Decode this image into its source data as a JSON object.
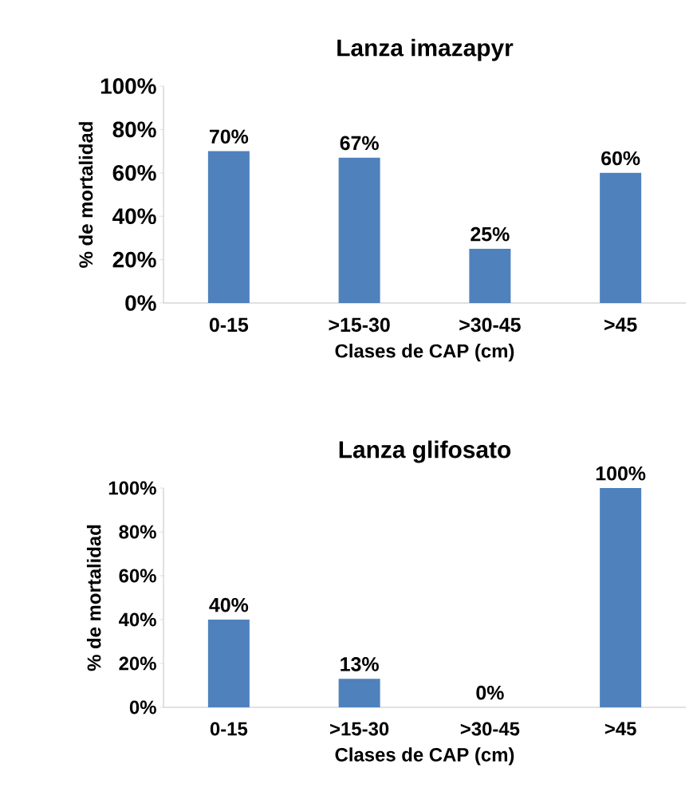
{
  "chart_data": [
    {
      "type": "bar",
      "title": "Lanza imazapyr",
      "xlabel": "Clases de CAP (cm)",
      "ylabel": "% de mortalidad",
      "categories": [
        "0-15",
        ">15-30",
        ">30-45",
        ">45"
      ],
      "values": [
        70,
        67,
        25,
        60
      ],
      "value_labels": [
        "70%",
        "67%",
        "25%",
        "60%"
      ],
      "color": "#4f81bd",
      "ylim": [
        0,
        100
      ],
      "yticks": [
        {
          "value": 0,
          "label": "0%"
        },
        {
          "value": 20,
          "label": "20%"
        },
        {
          "value": 40,
          "label": "40%"
        },
        {
          "value": 60,
          "label": "60%"
        },
        {
          "value": 80,
          "label": "80%"
        },
        {
          "value": 100,
          "label": "100%"
        }
      ]
    },
    {
      "type": "bar",
      "title": "Lanza glifosato",
      "xlabel": "Clases de CAP (cm)",
      "ylabel": "% de mortalidad",
      "categories": [
        "0-15",
        ">15-30",
        ">30-45",
        ">45"
      ],
      "values": [
        40,
        13,
        0,
        100
      ],
      "value_labels": [
        "40%",
        "13%",
        "0%",
        "100%"
      ],
      "color": "#4f81bd",
      "ylim": [
        0,
        100
      ],
      "yticks": [
        {
          "value": 0,
          "label": "0%"
        },
        {
          "value": 20,
          "label": "20%"
        },
        {
          "value": 40,
          "label": "40%"
        },
        {
          "value": 60,
          "label": "60%"
        },
        {
          "value": 80,
          "label": "80%"
        },
        {
          "value": 100,
          "label": "100%"
        }
      ]
    }
  ]
}
